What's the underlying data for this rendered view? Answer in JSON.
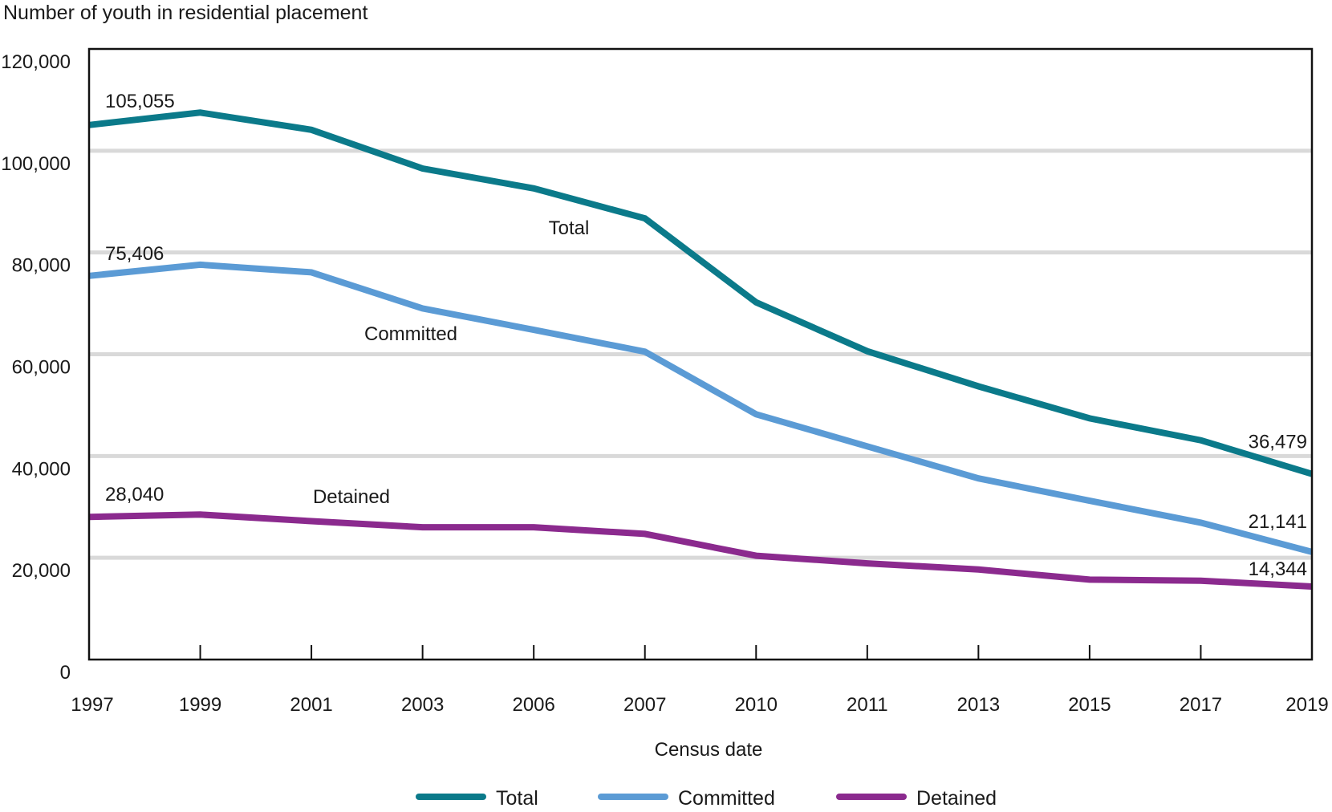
{
  "chart_data": {
    "type": "line",
    "title": "",
    "ylabel": "Number of youth in residential placement",
    "xlabel": "Census date",
    "categories": [
      "1997",
      "1999",
      "2001",
      "2003",
      "2006",
      "2007",
      "2010",
      "2011",
      "2013",
      "2015",
      "2017",
      "2019"
    ],
    "ylim": [
      0,
      120000
    ],
    "yticks": [
      0,
      20000,
      40000,
      60000,
      80000,
      100000,
      120000
    ],
    "ytick_labels": [
      "0",
      "20,000",
      "40,000",
      "60,000",
      "80,000",
      "100,000",
      "120,000"
    ],
    "grid": true,
    "legend_position": "bottom",
    "series": [
      {
        "key": "total",
        "name": "Total",
        "color": "#0b7a8a",
        "values": [
          105055,
          107500,
          104100,
          96500,
          92600,
          86700,
          70200,
          60600,
          53700,
          47400,
          43100,
          36479
        ],
        "inline_label": "Total",
        "inline_label_at": "2006-2007"
      },
      {
        "key": "committed",
        "name": "Committed",
        "color": "#5b9bd5",
        "values": [
          75406,
          77600,
          76100,
          69000,
          64800,
          60500,
          48200,
          41900,
          35600,
          31200,
          26900,
          21141
        ],
        "inline_label": "Committed",
        "inline_label_at": "2001-2003"
      },
      {
        "key": "detained",
        "name": "Detained",
        "color": "#8b2a8e",
        "values": [
          28040,
          28500,
          27200,
          26000,
          26000,
          24700,
          20400,
          18900,
          17700,
          15700,
          15500,
          14344
        ],
        "inline_label": "Detained",
        "inline_label_at": "2001"
      }
    ],
    "annotations": [
      {
        "series": "total",
        "category": "1997",
        "text": "105,055"
      },
      {
        "series": "committed",
        "category": "1997",
        "text": "75,406"
      },
      {
        "series": "detained",
        "category": "1997",
        "text": "28,040"
      },
      {
        "series": "total",
        "category": "2019",
        "text": "36,479"
      },
      {
        "series": "committed",
        "category": "2019",
        "text": "21,141"
      },
      {
        "series": "detained",
        "category": "2019",
        "text": "14,344"
      }
    ]
  }
}
